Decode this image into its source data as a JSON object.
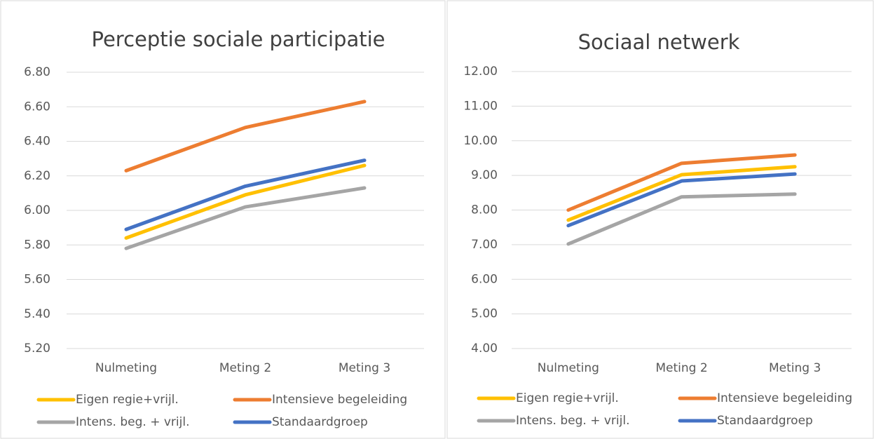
{
  "chart_data": [
    {
      "type": "line",
      "title": "Perceptie sociale participatie",
      "categories": [
        "Nulmeting",
        "Meting 2",
        "Meting 3"
      ],
      "series": [
        {
          "name": "Eigen regie+vrijl.",
          "color": "#ffc000",
          "values": [
            5.84,
            6.09,
            6.26
          ]
        },
        {
          "name": "Intensieve begeleiding",
          "color": "#ed7d31",
          "values": [
            6.23,
            6.48,
            6.63
          ]
        },
        {
          "name": "Intens. beg. + vrijl.",
          "color": "#a5a5a5",
          "values": [
            5.78,
            6.02,
            6.13
          ]
        },
        {
          "name": "Standaardgroep",
          "color": "#4472c4",
          "values": [
            5.89,
            6.14,
            6.29
          ]
        }
      ],
      "ylim": [
        5.2,
        6.8
      ],
      "yticks": [
        {
          "value": 5.2,
          "label": "5.20"
        },
        {
          "value": 5.4,
          "label": "5.40"
        },
        {
          "value": 5.6,
          "label": "5.60"
        },
        {
          "value": 5.8,
          "label": "5.80"
        },
        {
          "value": 6.0,
          "label": "6.00"
        },
        {
          "value": 6.2,
          "label": "6.20"
        },
        {
          "value": 6.4,
          "label": "6.40"
        },
        {
          "value": 6.6,
          "label": "6.60"
        },
        {
          "value": 6.8,
          "label": "6.80"
        }
      ],
      "grid": true,
      "legend": "bottom"
    },
    {
      "type": "line",
      "title": "Sociaal netwerk",
      "categories": [
        "Nulmeting",
        "Meting 2",
        "Meting 3"
      ],
      "series": [
        {
          "name": "Eigen regie+vrijl.",
          "color": "#ffc000",
          "values": [
            7.71,
            9.02,
            9.25
          ]
        },
        {
          "name": "Intensieve begeleiding",
          "color": "#ed7d31",
          "values": [
            8.0,
            9.35,
            9.59
          ]
        },
        {
          "name": "Intens. beg. + vrijl.",
          "color": "#a5a5a5",
          "values": [
            7.02,
            8.38,
            8.46
          ]
        },
        {
          "name": "Standaardgroep",
          "color": "#4472c4",
          "values": [
            7.55,
            8.84,
            9.04
          ]
        }
      ],
      "ylim": [
        4,
        12
      ],
      "yticks": [
        {
          "value": 4,
          "label": "4.00"
        },
        {
          "value": 5,
          "label": "5.00"
        },
        {
          "value": 6,
          "label": "6.00"
        },
        {
          "value": 7,
          "label": "7.00"
        },
        {
          "value": 8,
          "label": "8.00"
        },
        {
          "value": 9,
          "label": "9.00"
        },
        {
          "value": 10,
          "label": "10.00"
        },
        {
          "value": 11,
          "label": "11.00"
        },
        {
          "value": 12,
          "label": "12.00"
        }
      ],
      "grid": true,
      "legend": "bottom"
    }
  ]
}
